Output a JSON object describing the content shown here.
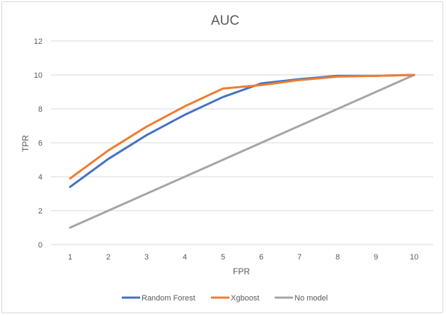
{
  "chart_data": {
    "type": "line",
    "title": "AUC",
    "xlabel": "FPR",
    "ylabel": "TPR",
    "categories": [
      "1",
      "2",
      "3",
      "4",
      "5",
      "6",
      "7",
      "8",
      "9",
      "10"
    ],
    "y_ticks": [
      "0",
      "2",
      "4",
      "6",
      "8",
      "10",
      "12"
    ],
    "ylim": [
      0,
      12
    ],
    "grid": "horizontal",
    "legend_position": "bottom",
    "series": [
      {
        "name": "Random Forest",
        "color": "#4472c4",
        "values": [
          3.4,
          5.05,
          6.45,
          7.65,
          8.7,
          9.5,
          9.75,
          9.95,
          9.95,
          10.0
        ]
      },
      {
        "name": "Xgboost",
        "color": "#ed7d31",
        "values": [
          3.9,
          5.55,
          6.95,
          8.15,
          9.2,
          9.4,
          9.7,
          9.9,
          9.95,
          10.0
        ]
      },
      {
        "name": "No model",
        "color": "#a5a5a5",
        "values": [
          1,
          2,
          3,
          4,
          5,
          6,
          7,
          8,
          9,
          10
        ]
      }
    ]
  }
}
